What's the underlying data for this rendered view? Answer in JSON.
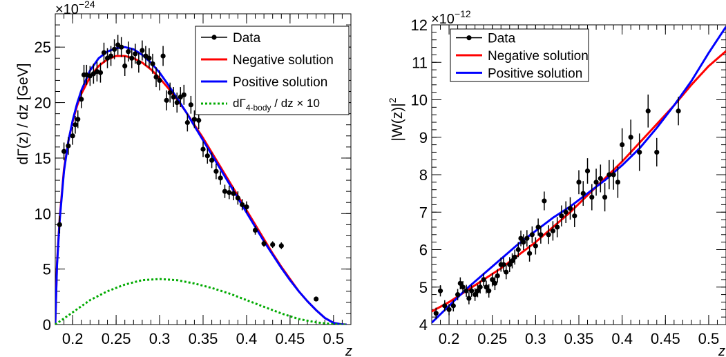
{
  "chart_data": [
    {
      "type": "line",
      "exponent_label": "×10",
      "exponent_power": "−24",
      "ylabel": "dΓ(z) / dz [GeV]",
      "xlabel": "z",
      "xlim": [
        0.18,
        0.52
      ],
      "ylim": [
        0,
        28
      ],
      "x_ticks": [
        0.2,
        0.25,
        0.3,
        0.35,
        0.4,
        0.45,
        0.5
      ],
      "x_tick_labels": [
        "0.2",
        "0.25",
        "0.3",
        "0.35",
        "0.4",
        "0.45",
        "0.5"
      ],
      "y_ticks": [
        0,
        5,
        10,
        15,
        20,
        25
      ],
      "y_tick_labels": [
        "0",
        "5",
        "10",
        "15",
        "20",
        "25"
      ],
      "legend_position": "top-right",
      "series": [
        {
          "name": "Data",
          "kind": "points",
          "color": "#000000",
          "x": [
            0.185,
            0.19,
            0.195,
            0.2,
            0.203,
            0.206,
            0.21,
            0.213,
            0.216,
            0.22,
            0.224,
            0.228,
            0.232,
            0.236,
            0.24,
            0.244,
            0.248,
            0.252,
            0.256,
            0.26,
            0.264,
            0.268,
            0.272,
            0.276,
            0.28,
            0.284,
            0.288,
            0.292,
            0.296,
            0.3,
            0.304,
            0.308,
            0.312,
            0.316,
            0.32,
            0.324,
            0.328,
            0.332,
            0.336,
            0.34,
            0.345,
            0.35,
            0.355,
            0.36,
            0.365,
            0.37,
            0.375,
            0.38,
            0.385,
            0.39,
            0.395,
            0.4,
            0.41,
            0.42,
            0.43,
            0.44,
            0.48
          ],
          "y": [
            9.0,
            15.6,
            16.1,
            17.0,
            18.0,
            18.5,
            20.3,
            22.5,
            22.5,
            22.4,
            22.6,
            22.8,
            22.7,
            24.5,
            24.0,
            24.2,
            24.8,
            25.2,
            25.0,
            23.3,
            24.6,
            24.0,
            24.4,
            23.6,
            24.7,
            24.2,
            24.0,
            23.5,
            22.3,
            22.0,
            24.2,
            20.2,
            20.9,
            20.5,
            20.0,
            20.5,
            20.7,
            18.2,
            19.8,
            18.5,
            18.4,
            15.8,
            15.2,
            14.8,
            13.8,
            13.2,
            12.0,
            11.9,
            11.8,
            11.4,
            10.8,
            10.6,
            8.5,
            7.3,
            7.2,
            7.1,
            2.3
          ],
          "err": [
            0.8,
            0.8,
            0.8,
            0.8,
            0.8,
            0.8,
            0.8,
            0.9,
            0.9,
            0.9,
            0.9,
            0.9,
            0.9,
            0.9,
            0.9,
            0.9,
            0.9,
            0.9,
            0.9,
            0.9,
            0.9,
            0.9,
            0.9,
            0.9,
            0.9,
            0.9,
            0.9,
            0.9,
            0.9,
            0.9,
            0.9,
            0.9,
            0.9,
            0.9,
            0.9,
            0.9,
            0.9,
            0.8,
            0.8,
            0.8,
            0.8,
            0.7,
            0.7,
            0.7,
            0.7,
            0.6,
            0.6,
            0.6,
            0.6,
            0.6,
            0.5,
            0.5,
            0.4,
            0.3,
            0.3,
            0.3,
            0.2
          ]
        },
        {
          "name": "Negative solution",
          "kind": "line",
          "color": "#ff0000",
          "x": [
            0.18,
            0.182,
            0.185,
            0.19,
            0.195,
            0.2,
            0.205,
            0.21,
            0.22,
            0.23,
            0.24,
            0.25,
            0.26,
            0.27,
            0.28,
            0.29,
            0.3,
            0.31,
            0.32,
            0.33,
            0.34,
            0.35,
            0.36,
            0.37,
            0.38,
            0.39,
            0.4,
            0.41,
            0.42,
            0.43,
            0.44,
            0.45,
            0.46,
            0.47,
            0.48,
            0.49,
            0.5,
            0.51,
            0.515
          ],
          "y": [
            0,
            5.5,
            9.5,
            14.0,
            16.5,
            18.3,
            19.7,
            20.8,
            22.3,
            23.3,
            23.9,
            24.2,
            24.2,
            24.0,
            23.6,
            23.0,
            22.2,
            21.3,
            20.3,
            19.2,
            18.0,
            16.8,
            15.5,
            14.2,
            12.9,
            11.6,
            10.3,
            9.0,
            7.7,
            6.4,
            5.2,
            4.1,
            3.0,
            2.1,
            1.3,
            0.6,
            0.15,
            0.01,
            0
          ]
        },
        {
          "name": "Positive solution",
          "kind": "line",
          "color": "#0000ff",
          "x": [
            0.18,
            0.182,
            0.185,
            0.19,
            0.195,
            0.2,
            0.205,
            0.21,
            0.22,
            0.23,
            0.24,
            0.25,
            0.26,
            0.27,
            0.28,
            0.29,
            0.3,
            0.31,
            0.32,
            0.33,
            0.34,
            0.35,
            0.36,
            0.37,
            0.38,
            0.39,
            0.4,
            0.41,
            0.42,
            0.43,
            0.44,
            0.45,
            0.46,
            0.47,
            0.48,
            0.49,
            0.5,
            0.51,
            0.515
          ],
          "y": [
            0,
            5.3,
            9.3,
            13.8,
            16.5,
            18.4,
            19.9,
            21.1,
            22.9,
            24.0,
            24.6,
            24.9,
            25.0,
            24.8,
            24.3,
            23.6,
            22.7,
            21.6,
            20.4,
            19.2,
            17.9,
            16.6,
            15.3,
            14.0,
            12.7,
            11.4,
            10.1,
            8.8,
            7.5,
            6.3,
            5.1,
            4.0,
            3.0,
            2.1,
            1.3,
            0.6,
            0.15,
            0.01,
            0
          ]
        },
        {
          "name_main": "dΓ",
          "name_sub": "4-body",
          "name_tail": " / dz × 10",
          "kind": "line",
          "dashed": true,
          "color": "#00aa00",
          "x": [
            0.18,
            0.2,
            0.22,
            0.24,
            0.26,
            0.28,
            0.3,
            0.32,
            0.34,
            0.36,
            0.38,
            0.4,
            0.42,
            0.44,
            0.46,
            0.48,
            0.5,
            0.51,
            0.515
          ],
          "y": [
            0,
            1.1,
            2.2,
            3.0,
            3.6,
            4.0,
            4.1,
            4.0,
            3.7,
            3.3,
            2.8,
            2.2,
            1.6,
            1.0,
            0.5,
            0.2,
            0.03,
            0,
            0
          ]
        }
      ]
    },
    {
      "type": "line",
      "exponent_label": "×10",
      "exponent_power": "−12",
      "ylabel": "|W(z)|",
      "ylabel_power": "2",
      "xlabel": "z",
      "xlim": [
        0.18,
        0.52
      ],
      "ylim": [
        4,
        12
      ],
      "x_ticks": [
        0.2,
        0.25,
        0.3,
        0.35,
        0.4,
        0.45,
        0.5
      ],
      "x_tick_labels": [
        "0.2",
        "0.25",
        "0.3",
        "0.35",
        "0.4",
        "0.45",
        "0.5"
      ],
      "y_ticks": [
        4,
        5,
        6,
        7,
        8,
        9,
        10,
        11,
        12
      ],
      "y_tick_labels": [
        "4",
        "5",
        "6",
        "7",
        "8",
        "9",
        "10",
        "11",
        "12"
      ],
      "legend_position": "top-left",
      "series": [
        {
          "name": "Data",
          "kind": "points",
          "color": "#000000",
          "x": [
            0.185,
            0.19,
            0.195,
            0.2,
            0.205,
            0.21,
            0.213,
            0.216,
            0.22,
            0.223,
            0.226,
            0.23,
            0.233,
            0.236,
            0.24,
            0.243,
            0.246,
            0.25,
            0.253,
            0.256,
            0.26,
            0.263,
            0.266,
            0.27,
            0.273,
            0.276,
            0.28,
            0.283,
            0.286,
            0.29,
            0.293,
            0.296,
            0.3,
            0.303,
            0.306,
            0.31,
            0.315,
            0.32,
            0.325,
            0.33,
            0.335,
            0.34,
            0.345,
            0.35,
            0.355,
            0.36,
            0.365,
            0.37,
            0.375,
            0.38,
            0.385,
            0.39,
            0.395,
            0.4,
            0.41,
            0.42,
            0.43,
            0.44,
            0.465
          ],
          "y": [
            4.3,
            4.9,
            4.5,
            4.4,
            4.5,
            4.8,
            5.1,
            5.0,
            4.9,
            4.7,
            4.9,
            4.8,
            4.9,
            5.0,
            5.2,
            5.0,
            4.9,
            5.2,
            5.1,
            5.3,
            5.6,
            5.6,
            5.4,
            5.6,
            5.7,
            5.8,
            6.0,
            6.3,
            6.2,
            6.3,
            5.9,
            6.4,
            6.1,
            6.6,
            6.4,
            7.3,
            6.4,
            6.5,
            6.6,
            6.9,
            7.0,
            7.1,
            6.9,
            7.8,
            7.5,
            8.1,
            7.4,
            7.8,
            7.9,
            7.4,
            8.0,
            8.0,
            7.8,
            8.8,
            9.0,
            8.6,
            9.7,
            8.6,
            9.7
          ],
          "err": [
            0.15,
            0.15,
            0.15,
            0.15,
            0.15,
            0.15,
            0.16,
            0.16,
            0.16,
            0.16,
            0.16,
            0.17,
            0.17,
            0.17,
            0.17,
            0.17,
            0.18,
            0.18,
            0.18,
            0.18,
            0.19,
            0.19,
            0.19,
            0.2,
            0.2,
            0.2,
            0.2,
            0.21,
            0.21,
            0.22,
            0.22,
            0.22,
            0.23,
            0.23,
            0.24,
            0.25,
            0.25,
            0.26,
            0.27,
            0.28,
            0.29,
            0.3,
            0.3,
            0.32,
            0.33,
            0.34,
            0.35,
            0.36,
            0.37,
            0.38,
            0.39,
            0.4,
            0.42,
            0.44,
            0.47,
            0.5,
            0.44,
            0.38,
            0.38
          ]
        },
        {
          "name": "Negative solution",
          "kind": "line",
          "color": "#ff0000",
          "x": [
            0.18,
            0.2,
            0.22,
            0.24,
            0.26,
            0.28,
            0.3,
            0.32,
            0.34,
            0.36,
            0.38,
            0.4,
            0.42,
            0.44,
            0.46,
            0.48,
            0.5,
            0.52
          ],
          "y": [
            4.35,
            4.6,
            4.9,
            5.2,
            5.5,
            5.85,
            6.2,
            6.6,
            7.0,
            7.45,
            7.9,
            8.35,
            8.85,
            9.35,
            9.85,
            10.4,
            10.9,
            11.3
          ]
        },
        {
          "name": "Positive solution",
          "kind": "line",
          "color": "#0000ff",
          "x": [
            0.18,
            0.2,
            0.22,
            0.24,
            0.26,
            0.28,
            0.3,
            0.32,
            0.34,
            0.36,
            0.38,
            0.4,
            0.42,
            0.44,
            0.46,
            0.48,
            0.5,
            0.52
          ],
          "y": [
            4.05,
            4.5,
            4.95,
            5.35,
            5.75,
            6.15,
            6.5,
            6.85,
            7.15,
            7.5,
            7.85,
            8.25,
            8.7,
            9.25,
            9.85,
            10.5,
            11.25,
            11.95
          ]
        }
      ]
    }
  ]
}
